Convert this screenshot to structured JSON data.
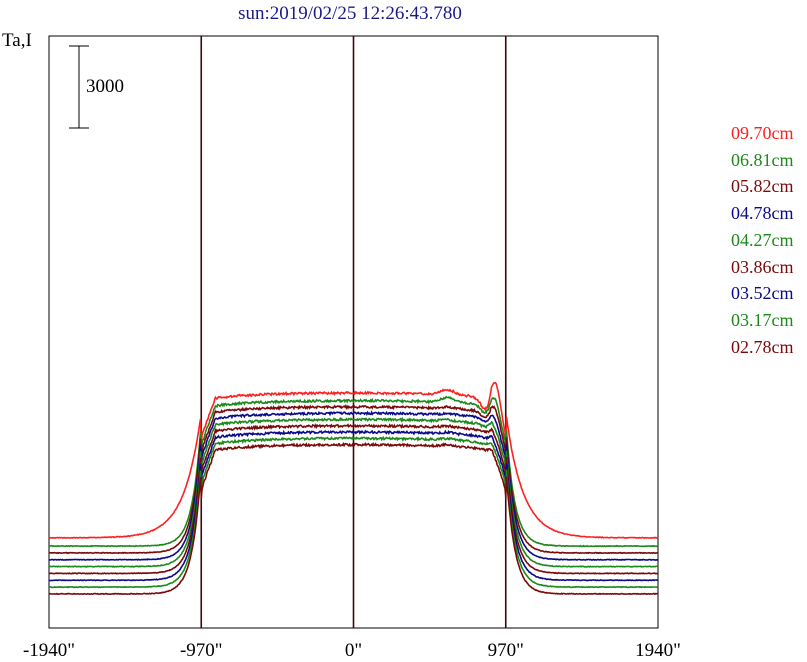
{
  "title": "sun:2019/02/25 12:26:43.780",
  "chart_data": {
    "type": "line",
    "title": "sun:2019/02/25 12:26:43.780",
    "ylabel": "Ta,I",
    "scale_bar_label": "3000",
    "scale_bar_value": 3000,
    "x_ticks": [
      -1940,
      -970,
      0,
      970,
      1940
    ],
    "x_tick_labels": [
      "-1940\"",
      "-970\"",
      "0\"",
      "970\"",
      "1940\""
    ],
    "xlim": [
      -1940,
      1940
    ],
    "vertical_lines": [
      -970,
      0,
      970
    ],
    "series": [
      {
        "name": "09.70cm",
        "color": "#ff2020",
        "baseline": 2200,
        "profile": "w097"
      },
      {
        "name": "06.81cm",
        "color": "#1a8a1a",
        "baseline": 1900,
        "profile": "w068"
      },
      {
        "name": "05.82cm",
        "color": "#7a0a0a",
        "baseline": 1650,
        "profile": "w058"
      },
      {
        "name": "04.78cm",
        "color": "#0a0a8a",
        "baseline": 1400,
        "profile": "w048"
      },
      {
        "name": "04.27cm",
        "color": "#1a8a1a",
        "baseline": 1150,
        "profile": "w043"
      },
      {
        "name": "03.86cm",
        "color": "#7a0a0a",
        "baseline": 900,
        "profile": "w039"
      },
      {
        "name": "03.52cm",
        "color": "#0a0a8a",
        "baseline": 650,
        "profile": "w035"
      },
      {
        "name": "03.17cm",
        "color": "#1a8a1a",
        "baseline": 400,
        "profile": "w032"
      },
      {
        "name": "02.78cm",
        "color": "#7a0a0a",
        "baseline": 150,
        "profile": "w028"
      }
    ],
    "grid": false,
    "legend_position": "right"
  }
}
